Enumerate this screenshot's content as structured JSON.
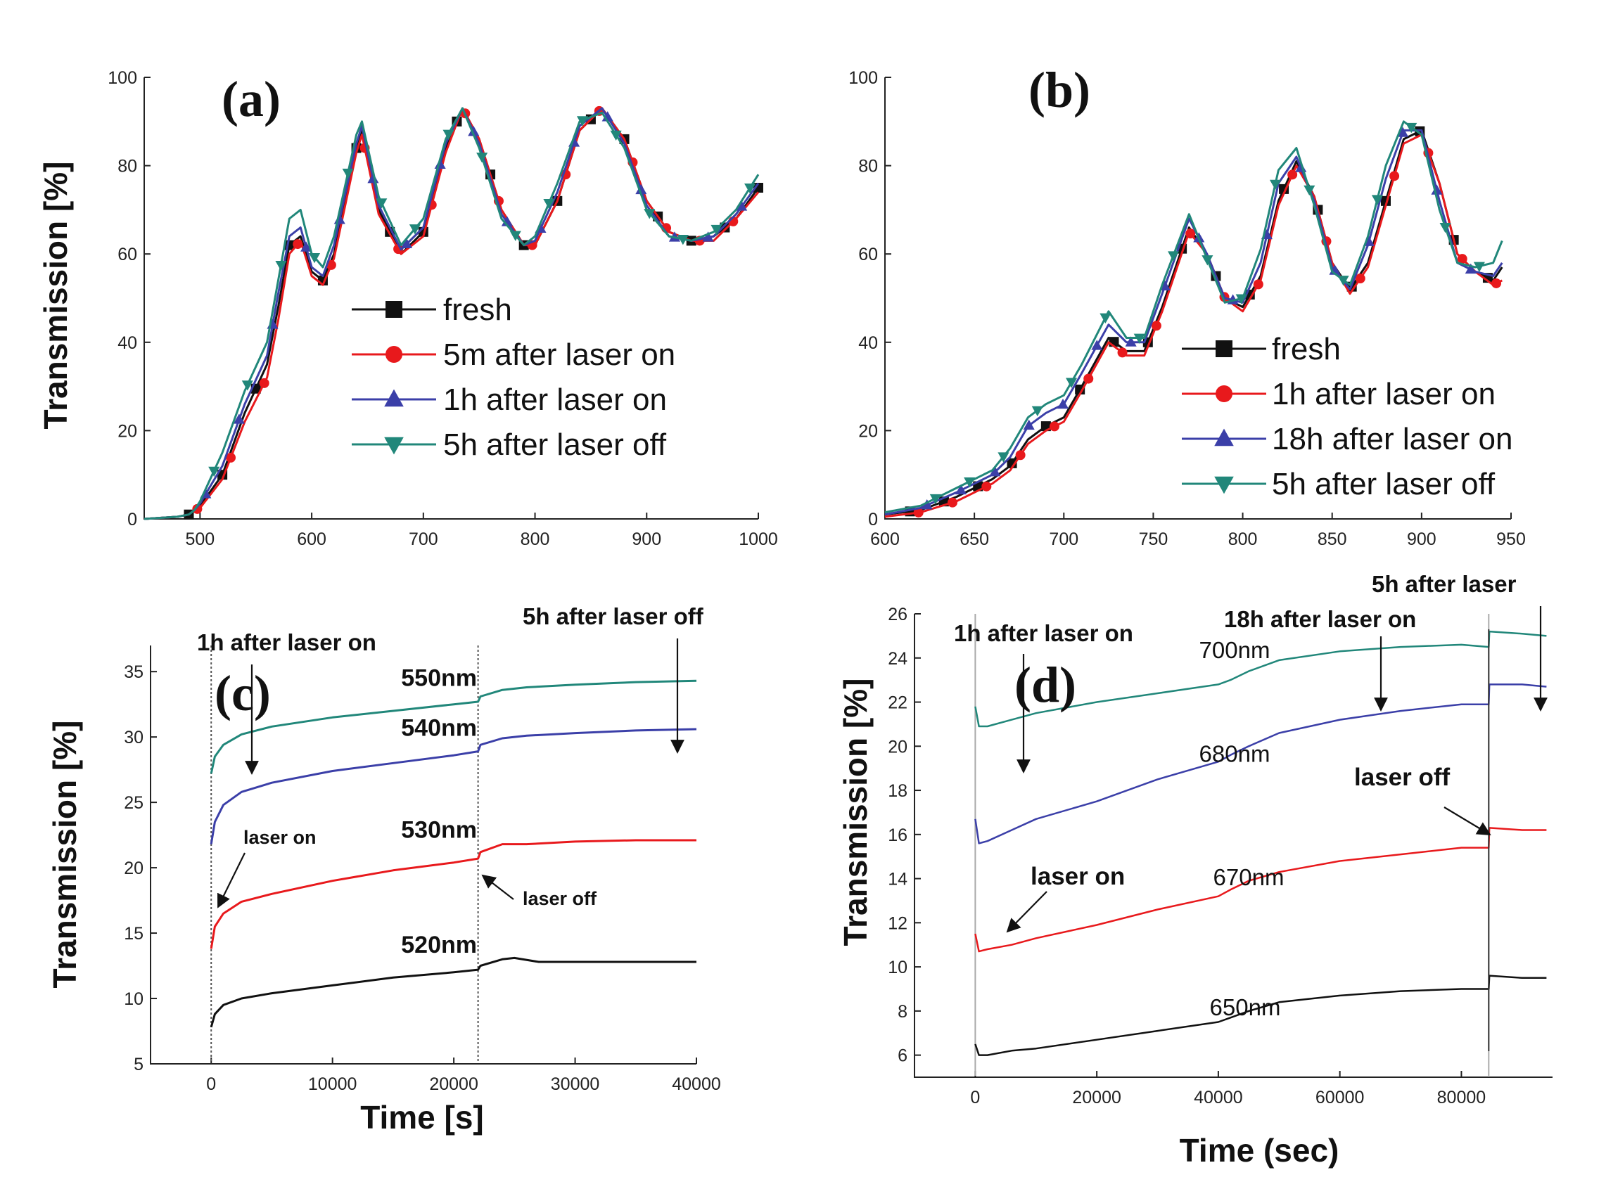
{
  "chart_data": [
    {
      "panel": "(a)",
      "type": "line",
      "ylabel": "Transmission [%]",
      "xlabel": "",
      "ylim": [
        0,
        100
      ],
      "xlim": [
        450,
        1000
      ],
      "yticks": [
        0,
        20,
        40,
        60,
        80,
        100
      ],
      "xticks": [
        500,
        600,
        700,
        800,
        900,
        1000
      ],
      "xtick_labels": [
        "500",
        "600",
        "700",
        "800",
        "900",
        "1000"
      ],
      "series": [
        {
          "name": "fresh",
          "color": "#111111",
          "marker": "square",
          "x": [
            450,
            480,
            490,
            495,
            500,
            520,
            540,
            560,
            570,
            580,
            590,
            600,
            610,
            620,
            640,
            645,
            660,
            680,
            700,
            720,
            735,
            750,
            770,
            790,
            800,
            820,
            840,
            860,
            880,
            900,
            920,
            940,
            960,
            980,
            1000
          ],
          "y": [
            0,
            0.5,
            1,
            2,
            3,
            10,
            24,
            35,
            48,
            62,
            64,
            56,
            54,
            60,
            84,
            88,
            70,
            60,
            65,
            84,
            93,
            86,
            70,
            62,
            62,
            72,
            88,
            93,
            86,
            72,
            65,
            63,
            64,
            68,
            75
          ]
        },
        {
          "name": "5m after laser on",
          "color": "#e8191c",
          "marker": "circle",
          "x": [
            450,
            480,
            490,
            495,
            500,
            520,
            540,
            560,
            570,
            580,
            590,
            600,
            610,
            620,
            640,
            645,
            660,
            680,
            700,
            720,
            735,
            750,
            770,
            790,
            800,
            820,
            840,
            860,
            880,
            900,
            920,
            940,
            960,
            980,
            1000
          ],
          "y": [
            0,
            0.5,
            1,
            2,
            2.5,
            9,
            22,
            32,
            45,
            60,
            63,
            55,
            53,
            59,
            83,
            87,
            69,
            60,
            64,
            83,
            93,
            86,
            70,
            62,
            62,
            72,
            88,
            93,
            86,
            72,
            65,
            63,
            63,
            68,
            74
          ]
        },
        {
          "name": "1h after laser on",
          "color": "#3b3fa8",
          "marker": "triangle-up",
          "x": [
            450,
            480,
            490,
            495,
            500,
            520,
            540,
            560,
            570,
            580,
            590,
            600,
            610,
            620,
            640,
            645,
            660,
            680,
            700,
            720,
            735,
            750,
            770,
            790,
            800,
            820,
            840,
            860,
            880,
            900,
            920,
            940,
            960,
            980,
            1000
          ],
          "y": [
            0,
            0.5,
            1,
            2,
            3.5,
            12,
            26,
            37,
            51,
            64,
            66,
            57,
            55,
            62,
            85,
            89,
            71,
            61,
            66,
            85,
            93,
            85,
            69,
            62,
            63,
            74,
            89,
            93,
            85,
            71,
            64,
            63,
            64,
            69,
            76
          ]
        },
        {
          "name": "5h after laser off",
          "color": "#21877a",
          "marker": "triangle-down",
          "x": [
            450,
            480,
            490,
            495,
            500,
            520,
            540,
            560,
            570,
            580,
            590,
            600,
            610,
            620,
            640,
            645,
            660,
            680,
            700,
            720,
            735,
            750,
            770,
            790,
            800,
            820,
            840,
            860,
            880,
            900,
            920,
            940,
            960,
            980,
            1000
          ],
          "y": [
            0,
            0.5,
            1,
            2,
            4,
            15,
            29,
            40,
            54,
            68,
            70,
            60,
            57,
            64,
            87,
            90,
            73,
            62,
            68,
            86,
            93,
            84,
            68,
            62,
            64,
            76,
            90,
            92,
            84,
            70,
            64,
            63,
            65,
            70,
            78
          ]
        }
      ],
      "legend": [
        "fresh",
        "5m after laser on",
        "1h after laser on",
        "5h after laser off"
      ]
    },
    {
      "panel": "(b)",
      "type": "line",
      "ylabel": "",
      "xlabel": "",
      "ylim": [
        0,
        100
      ],
      "xlim": [
        600,
        950
      ],
      "yticks": [
        0,
        20,
        40,
        60,
        80,
        100
      ],
      "xticks": [
        600,
        650,
        700,
        750,
        800,
        850,
        900,
        950
      ],
      "series": [
        {
          "name": "fresh",
          "color": "#111111",
          "marker": "square",
          "x": [
            600,
            620,
            640,
            660,
            670,
            680,
            690,
            700,
            710,
            725,
            735,
            745,
            755,
            770,
            780,
            790,
            800,
            810,
            820,
            830,
            840,
            850,
            860,
            870,
            880,
            890,
            900,
            910,
            920,
            930,
            940,
            945
          ],
          "y": [
            1,
            2,
            5,
            9,
            12,
            18,
            21,
            23,
            30,
            41,
            38,
            38,
            48,
            66,
            60,
            50,
            48,
            55,
            72,
            81,
            73,
            58,
            52,
            58,
            72,
            86,
            88,
            76,
            60,
            56,
            54,
            57
          ]
        },
        {
          "name": "1h after laser on",
          "color": "#e8191c",
          "marker": "circle",
          "x": [
            600,
            620,
            640,
            660,
            670,
            680,
            690,
            700,
            710,
            725,
            735,
            745,
            755,
            770,
            780,
            790,
            800,
            810,
            820,
            830,
            840,
            850,
            860,
            870,
            880,
            890,
            900,
            910,
            920,
            930,
            940,
            945
          ],
          "y": [
            0.5,
            1.5,
            4,
            8,
            11,
            17,
            20,
            22,
            29,
            40,
            37,
            37,
            47,
            65,
            60,
            50,
            47,
            54,
            71,
            80,
            73,
            58,
            51,
            57,
            71,
            85,
            87,
            76,
            60,
            56,
            53,
            54
          ]
        },
        {
          "name": "18h after laser on",
          "color": "#3b3fa8",
          "marker": "triangle-up",
          "x": [
            600,
            620,
            640,
            660,
            670,
            680,
            690,
            700,
            710,
            725,
            735,
            745,
            755,
            770,
            780,
            790,
            800,
            810,
            820,
            830,
            840,
            850,
            860,
            870,
            880,
            890,
            900,
            910,
            920,
            930,
            940,
            945
          ],
          "y": [
            1,
            2.5,
            6,
            10,
            14,
            21,
            24,
            26,
            33,
            44,
            40,
            40,
            51,
            68,
            60,
            50,
            49,
            58,
            76,
            82,
            72,
            57,
            52,
            62,
            77,
            88,
            88,
            72,
            58,
            56,
            55,
            58
          ]
        },
        {
          "name": "5h after laser off",
          "color": "#21877a",
          "marker": "triangle-down",
          "x": [
            600,
            620,
            640,
            660,
            670,
            680,
            690,
            700,
            710,
            725,
            735,
            745,
            755,
            770,
            780,
            790,
            800,
            810,
            820,
            830,
            840,
            850,
            860,
            870,
            880,
            890,
            900,
            910,
            920,
            930,
            940,
            945
          ],
          "y": [
            1.5,
            3,
            7,
            11,
            16,
            23,
            26,
            28,
            35,
            47,
            41,
            41,
            53,
            69,
            59,
            49,
            50,
            61,
            79,
            84,
            71,
            56,
            53,
            64,
            80,
            90,
            87,
            70,
            58,
            57,
            58,
            63
          ]
        }
      ],
      "legend": [
        "fresh",
        "1h after laser on",
        "18h after laser on",
        "5h after laser off"
      ]
    },
    {
      "panel": "(c)",
      "type": "line",
      "ylabel": "Transmission [%]",
      "xlabel": "Time [s]",
      "ylim": [
        5,
        37
      ],
      "xlim": [
        -5000,
        40000
      ],
      "yticks": [
        5,
        10,
        15,
        20,
        25,
        30,
        35
      ],
      "xticks": [
        0,
        10000,
        20000,
        30000,
        40000
      ],
      "vlines": [
        0,
        22000
      ],
      "series": [
        {
          "name": "550nm",
          "color": "#21877a",
          "x": [
            0,
            300,
            1000,
            2500,
            5000,
            10000,
            15000,
            20000,
            22000,
            22200,
            24000,
            26000,
            30000,
            35000,
            40000
          ],
          "y": [
            27.2,
            28.5,
            29.4,
            30.2,
            30.8,
            31.5,
            32.0,
            32.5,
            32.7,
            33.1,
            33.6,
            33.8,
            34.0,
            34.2,
            34.3
          ]
        },
        {
          "name": "540nm",
          "color": "#3b3fa8",
          "x": [
            0,
            300,
            1000,
            2500,
            5000,
            10000,
            15000,
            20000,
            22000,
            22200,
            24000,
            26000,
            30000,
            35000,
            40000
          ],
          "y": [
            21.8,
            23.5,
            24.8,
            25.8,
            26.5,
            27.4,
            28.0,
            28.6,
            28.9,
            29.4,
            29.9,
            30.1,
            30.3,
            30.5,
            30.6
          ]
        },
        {
          "name": "530nm",
          "color": "#e8191c",
          "x": [
            0,
            300,
            1000,
            2500,
            5000,
            10000,
            15000,
            20000,
            22000,
            22200,
            24000,
            26000,
            30000,
            35000,
            40000
          ],
          "y": [
            13.8,
            15.5,
            16.5,
            17.4,
            18.0,
            19.0,
            19.8,
            20.4,
            20.7,
            21.2,
            21.8,
            21.8,
            22.0,
            22.1,
            22.1
          ]
        },
        {
          "name": "520nm",
          "color": "#111111",
          "x": [
            0,
            300,
            1000,
            2500,
            5000,
            10000,
            15000,
            20000,
            22000,
            22200,
            24000,
            25000,
            27000,
            30000,
            35000,
            40000
          ],
          "y": [
            7.8,
            8.8,
            9.5,
            10.0,
            10.4,
            11.0,
            11.6,
            12.0,
            12.2,
            12.5,
            13.0,
            13.1,
            12.8,
            12.8,
            12.8,
            12.8
          ]
        }
      ],
      "line_labels": [
        "550nm",
        "540nm",
        "530nm",
        "520nm"
      ],
      "annotations": {
        "top_left": "1h after laser on",
        "top_right": "5h after laser off",
        "laser_on": "laser on",
        "laser_off": "laser off"
      }
    },
    {
      "panel": "(d)",
      "type": "line",
      "ylabel": "Transmission [%]",
      "xlabel": "Time (sec)",
      "ylim": [
        5,
        26
      ],
      "xlim": [
        -10000,
        95000
      ],
      "yticks": [
        6,
        8,
        10,
        12,
        14,
        16,
        18,
        20,
        22,
        24,
        26
      ],
      "xticks": [
        0,
        20000,
        40000,
        60000,
        80000
      ],
      "vlines": [
        0,
        84500
      ],
      "series": [
        {
          "name": "700nm",
          "color": "#21877a",
          "x": [
            0,
            600,
            2000,
            6000,
            10000,
            20000,
            30000,
            40000,
            42000,
            45000,
            50000,
            60000,
            70000,
            80000,
            84500,
            84600,
            90000,
            94000
          ],
          "y": [
            21.8,
            20.9,
            20.9,
            21.2,
            21.5,
            22.0,
            22.4,
            22.8,
            23.0,
            23.4,
            23.9,
            24.3,
            24.5,
            24.6,
            24.5,
            25.2,
            25.1,
            25.0
          ]
        },
        {
          "name": "680nm",
          "color": "#3b3fa8",
          "x": [
            0,
            600,
            2000,
            6000,
            10000,
            20000,
            30000,
            40000,
            42000,
            45000,
            50000,
            60000,
            70000,
            80000,
            84500,
            84600,
            90000,
            94000
          ],
          "y": [
            16.7,
            15.6,
            15.7,
            16.2,
            16.7,
            17.5,
            18.5,
            19.3,
            19.6,
            20.0,
            20.6,
            21.2,
            21.6,
            21.9,
            21.9,
            22.8,
            22.8,
            22.7
          ]
        },
        {
          "name": "670nm",
          "color": "#e8191c",
          "x": [
            0,
            600,
            2000,
            6000,
            10000,
            20000,
            30000,
            40000,
            42000,
            45000,
            50000,
            60000,
            70000,
            80000,
            84500,
            84600,
            90000,
            94000
          ],
          "y": [
            11.5,
            10.7,
            10.8,
            11.0,
            11.3,
            11.9,
            12.6,
            13.2,
            13.5,
            13.9,
            14.3,
            14.8,
            15.1,
            15.4,
            15.4,
            16.3,
            16.2,
            16.2
          ]
        },
        {
          "name": "650nm",
          "color": "#111111",
          "x": [
            0,
            600,
            2000,
            6000,
            10000,
            20000,
            30000,
            40000,
            42000,
            45000,
            50000,
            60000,
            70000,
            80000,
            84500,
            84600,
            90000,
            94000
          ],
          "y": [
            6.5,
            6.0,
            6.0,
            6.2,
            6.3,
            6.7,
            7.1,
            7.5,
            7.7,
            8.0,
            8.4,
            8.7,
            8.9,
            9.0,
            9.0,
            9.6,
            9.5,
            9.5
          ]
        }
      ],
      "line_labels": [
        "700nm",
        "680nm",
        "670nm",
        "650nm"
      ],
      "annotations": {
        "top_left": "1h after laser on",
        "top_mid": "18h after laser on",
        "top_right": "5h after laser",
        "laser_on": "laser on",
        "laser_off": "laser off"
      }
    }
  ]
}
